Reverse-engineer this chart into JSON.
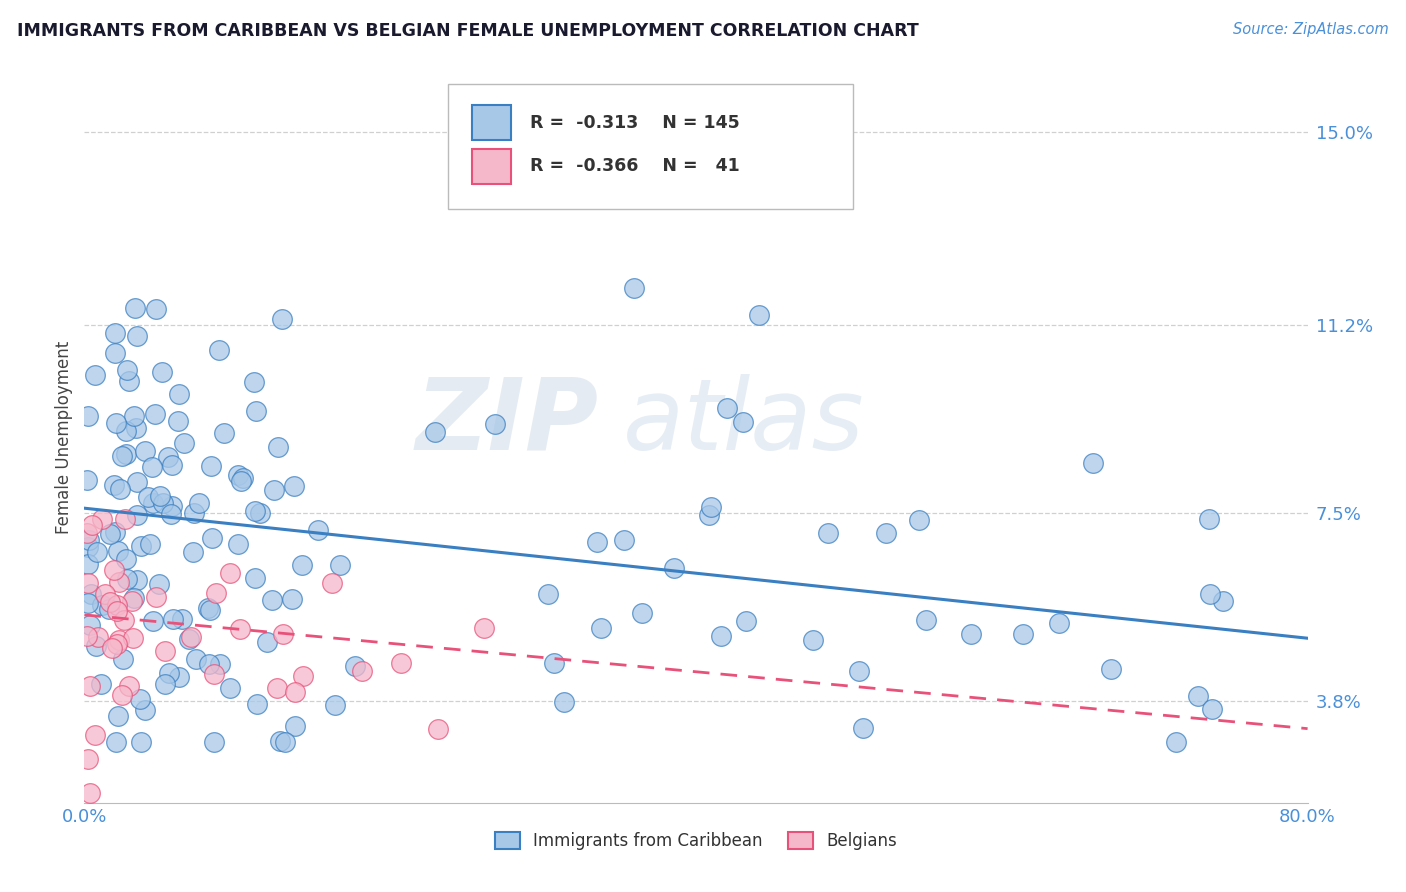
{
  "title": "IMMIGRANTS FROM CARIBBEAN VS BELGIAN FEMALE UNEMPLOYMENT CORRELATION CHART",
  "source_text": "Source: ZipAtlas.com",
  "ylabel": "Female Unemployment",
  "xlim": [
    0.0,
    0.8
  ],
  "ylim": [
    0.018,
    0.162
  ],
  "ytick_vals": [
    0.038,
    0.075,
    0.112,
    0.15
  ],
  "ytick_labels": [
    "3.8%",
    "7.5%",
    "11.2%",
    "15.0%"
  ],
  "xtick_vals": [
    0.0,
    0.8
  ],
  "xtick_labels": [
    "0.0%",
    "80.0%"
  ],
  "color_blue": "#a8c8e8",
  "color_pink": "#f5b8cb",
  "line_blue": "#3a7fc1",
  "line_pink": "#e8527a",
  "legend_label1": "Immigrants from Caribbean",
  "legend_label2": "Belgians",
  "r1": -0.313,
  "n1": 145,
  "r2": -0.366,
  "n2": 41,
  "watermark_zip": "ZIP",
  "watermark_atlas": "atlas",
  "background_color": "#ffffff",
  "grid_color": "#d0d0d0",
  "title_color": "#1a1a2e",
  "axis_label_color": "#444444",
  "tick_label_color": "#4a90d9",
  "blue_slope": -0.032,
  "blue_intercept": 0.076,
  "pink_slope": -0.028,
  "pink_intercept": 0.055
}
